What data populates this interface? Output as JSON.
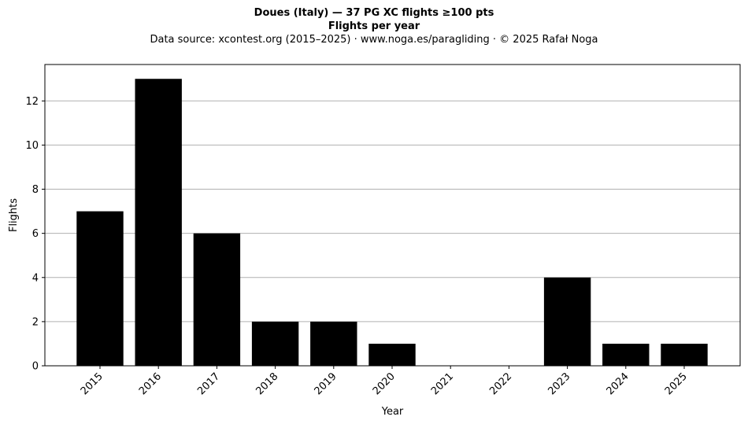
{
  "chart_data": {
    "type": "bar",
    "title": "Doues (Italy)  —  37 PG XC flights ≥100 pts",
    "subtitle": "Flights per year",
    "source_line": "Data source: xcontest.org (2015–2025)  ·  www.noga.es/paragliding  ·  © 2025 Rafał Noga",
    "xlabel": "Year",
    "ylabel": "Flights",
    "categories": [
      "2015",
      "2016",
      "2017",
      "2018",
      "2019",
      "2020",
      "2021",
      "2022",
      "2023",
      "2024",
      "2025"
    ],
    "values": [
      7,
      13,
      6,
      2,
      2,
      1,
      0,
      0,
      4,
      1,
      1
    ],
    "ylim": [
      0,
      13.65
    ],
    "yticks": [
      0,
      2,
      4,
      6,
      8,
      10,
      12
    ],
    "grid": "y",
    "bar_color": "#000000",
    "grid_color": "#b0b0b0"
  }
}
